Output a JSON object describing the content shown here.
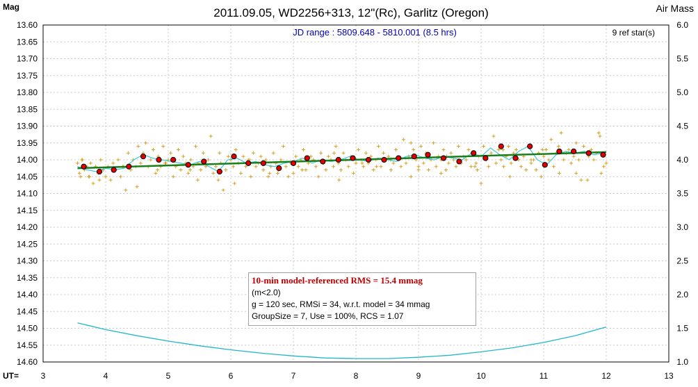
{
  "chart_data": {
    "type": "scatter",
    "title": "2011.09.05, WD2256+313, 12\"(Rc), Garlitz (Oregon)",
    "subtitle": "JD range : 5809.648 - 5810.001 (8.5 hrs)",
    "ref_stars": "9 ref star(s)",
    "ylabel": "Mag",
    "y2label": "Air Mass",
    "xlabel": "UT=",
    "xlim": [
      3,
      13
    ],
    "ylim": [
      13.6,
      14.6
    ],
    "y_inverted": true,
    "y2lim": [
      1.0,
      6.0
    ],
    "x_ticks": [
      "3",
      "4",
      "5",
      "6",
      "7",
      "8",
      "9",
      "10",
      "11",
      "12",
      "13"
    ],
    "y_ticks": [
      "13.60",
      "13.65",
      "13.70",
      "13.75",
      "13.80",
      "13.85",
      "13.90",
      "13.95",
      "14.00",
      "14.05",
      "14.10",
      "14.15",
      "14.20",
      "14.25",
      "14.30",
      "14.35",
      "14.40",
      "14.45",
      "14.50",
      "14.55",
      "14.60"
    ],
    "y2_ticks": [
      "6.0",
      "5.5",
      "5.0",
      "4.5",
      "4.0",
      "3.5",
      "3.0",
      "2.5",
      "2.0",
      "1.5",
      "1.0"
    ],
    "grid": true,
    "series": [
      {
        "kind": "raw",
        "color": "#d4a020",
        "x": [
          3.55,
          3.58,
          3.6,
          3.63,
          3.66,
          3.7,
          3.73,
          3.76,
          3.8,
          3.84,
          3.88,
          3.92,
          3.96,
          4.0,
          4.04,
          4.08,
          4.12,
          4.16,
          4.2,
          4.24,
          4.28,
          4.32,
          4.36,
          4.4,
          4.44,
          4.48,
          4.52,
          4.56,
          4.6,
          4.64,
          4.68,
          4.72,
          4.76,
          4.8,
          4.84,
          4.88,
          4.92,
          4.96,
          5.0,
          5.04,
          5.08,
          5.12,
          5.16,
          5.2,
          5.24,
          5.28,
          5.32,
          5.36,
          5.4,
          5.44,
          5.48,
          5.52,
          5.56,
          5.6,
          5.64,
          5.68,
          5.72,
          5.76,
          5.8,
          5.84,
          5.88,
          5.92,
          5.96,
          6.0,
          6.04,
          6.08,
          6.12,
          6.16,
          6.2,
          6.24,
          6.28,
          6.32,
          6.36,
          6.4,
          6.44,
          6.48,
          6.52,
          6.56,
          6.6,
          6.64,
          6.68,
          6.72,
          6.76,
          6.8,
          6.84,
          6.88,
          6.92,
          6.96,
          7.0,
          7.04,
          7.08,
          7.12,
          7.16,
          7.2,
          7.24,
          7.28,
          7.32,
          7.36,
          7.4,
          7.44,
          7.48,
          7.52,
          7.56,
          7.6,
          7.64,
          7.68,
          7.72,
          7.76,
          7.8,
          7.84,
          7.88,
          7.92,
          7.96,
          8.0,
          8.04,
          8.08,
          8.12,
          8.16,
          8.2,
          8.24,
          8.28,
          8.32,
          8.36,
          8.4,
          8.44,
          8.48,
          8.52,
          8.56,
          8.6,
          8.64,
          8.68,
          8.72,
          8.76,
          8.8,
          8.84,
          8.88,
          8.92,
          8.96,
          9.0,
          9.04,
          9.08,
          9.12,
          9.16,
          9.2,
          9.24,
          9.28,
          9.32,
          9.36,
          9.4,
          9.44,
          9.48,
          9.52,
          9.56,
          9.6,
          9.64,
          9.68,
          9.72,
          9.76,
          9.8,
          9.84,
          9.88,
          9.92,
          9.96,
          10.0,
          10.04,
          10.08,
          10.12,
          10.16,
          10.2,
          10.24,
          10.28,
          10.32,
          10.36,
          10.4,
          10.44,
          10.48,
          10.52,
          10.56,
          10.6,
          10.64,
          10.68,
          10.72,
          10.76,
          10.8,
          10.84,
          10.88,
          10.92,
          10.96,
          11.0,
          11.04,
          11.08,
          11.12,
          11.16,
          11.2,
          11.24,
          11.28,
          11.32,
          11.36,
          11.4,
          11.44,
          11.48,
          11.52,
          11.56,
          11.6,
          11.64,
          11.68,
          11.72,
          11.76,
          11.8,
          11.84,
          11.88,
          11.92,
          11.96,
          12.0,
          3.62,
          3.9,
          4.15,
          4.5,
          4.95,
          5.35,
          5.82,
          6.3,
          6.75,
          7.2,
          7.65,
          8.1,
          8.55,
          9.0,
          9.45,
          9.9,
          10.35,
          10.8,
          11.25,
          11.7,
          3.74,
          4.27,
          4.83,
          5.47,
          6.06,
          6.62,
          7.14,
          7.73,
          8.33,
          8.88,
          9.36,
          9.94,
          10.46,
          10.98,
          11.52,
          11.9
        ],
        "y": [
          14.01,
          14.04,
          14.05,
          14.0,
          14.03,
          14.02,
          14.05,
          14.01,
          14.07,
          14.02,
          14.04,
          14.0,
          14.03,
          14.05,
          14.02,
          14.06,
          14.01,
          14.03,
          14.0,
          14.05,
          14.02,
          14.09,
          13.98,
          14.03,
          14.0,
          14.02,
          13.96,
          14.01,
          13.98,
          13.95,
          14.02,
          14.0,
          13.97,
          14.04,
          13.99,
          14.02,
          13.96,
          14.01,
          14.0,
          13.98,
          14.05,
          14.02,
          13.97,
          14.03,
          13.99,
          14.01,
          14.04,
          14.0,
          14.02,
          13.96,
          14.01,
          14.03,
          13.98,
          14.02,
          14.0,
          13.93,
          14.04,
          14.02,
          14.06,
          14.01,
          14.09,
          14.03,
          13.99,
          14.0,
          14.02,
          13.97,
          14.01,
          14.04,
          13.99,
          14.02,
          14.0,
          14.05,
          13.98,
          14.02,
          14.01,
          13.99,
          14.03,
          14.0,
          14.05,
          14.02,
          13.98,
          14.01,
          14.03,
          14.0,
          13.96,
          14.02,
          14.05,
          14.01,
          14.04,
          13.99,
          14.02,
          14.0,
          13.97,
          14.03,
          14.01,
          13.99,
          14.0,
          14.02,
          14.05,
          13.98,
          14.01,
          14.03,
          13.99,
          14.0,
          14.02,
          13.96,
          14.01,
          14.03,
          13.98,
          14.0,
          14.02,
          13.99,
          14.04,
          14.01,
          13.97,
          14.0,
          14.02,
          13.98,
          14.01,
          13.99,
          14.03,
          14.0,
          13.96,
          14.02,
          13.98,
          14.0,
          13.99,
          14.03,
          14.01,
          13.97,
          14.0,
          14.02,
          13.94,
          14.01,
          13.99,
          14.05,
          13.97,
          14.0,
          14.02,
          13.96,
          14.01,
          13.98,
          14.03,
          14.0,
          13.95,
          14.02,
          13.99,
          14.0,
          13.97,
          14.03,
          14.01,
          13.98,
          14.0,
          14.02,
          13.96,
          14.01,
          13.99,
          14.0,
          13.97,
          14.02,
          13.98,
          14.01,
          13.99,
          14.07,
          13.96,
          14.0,
          14.02,
          13.98,
          13.93,
          14.01,
          13.97,
          14.0,
          14.02,
          13.99,
          13.96,
          14.01,
          13.98,
          13.97,
          14.0,
          14.02,
          13.99,
          14.03,
          13.96,
          14.01,
          14.0,
          14.03,
          13.98,
          14.05,
          13.99,
          13.97,
          14.0,
          13.94,
          14.02,
          13.98,
          13.96,
          13.92,
          14.0,
          13.98,
          13.97,
          14.01,
          13.99,
          13.95,
          14.0,
          14.06,
          13.96,
          13.98,
          13.99,
          13.97,
          14.0,
          13.98,
          13.92,
          14.04,
          14.02,
          14.01,
          14.0,
          14.06,
          14.03,
          14.08,
          14.01,
          14.03,
          13.98,
          14.0,
          14.04,
          14.03,
          13.98,
          14.01,
          14.0,
          14.03,
          13.99,
          14.02,
          13.97,
          14.0,
          14.04,
          14.06,
          14.05,
          14.02,
          14.03,
          14.06,
          14.07,
          14.04,
          14.03,
          14.06,
          14.02,
          13.95,
          14.04,
          14.03,
          14.05,
          13.97,
          14.04,
          13.93
        ]
      },
      {
        "kind": "binned",
        "color": "#e00000",
        "x": [
          3.65,
          3.9,
          4.13,
          4.37,
          4.6,
          4.85,
          5.08,
          5.32,
          5.57,
          5.82,
          6.05,
          6.28,
          6.52,
          6.77,
          7.0,
          7.22,
          7.47,
          7.72,
          7.95,
          8.2,
          8.45,
          8.68,
          8.93,
          9.15,
          9.4,
          9.65,
          9.88,
          10.07,
          10.32,
          10.55,
          10.78,
          11.02,
          11.25,
          11.48,
          11.72,
          11.95
        ],
        "y": [
          14.02,
          14.035,
          14.03,
          14.02,
          13.99,
          14.0,
          14.0,
          14.015,
          14.005,
          14.035,
          13.99,
          14.01,
          14.01,
          14.025,
          14.01,
          13.995,
          14.005,
          14.0,
          13.995,
          14.0,
          14.0,
          13.995,
          13.99,
          13.985,
          13.995,
          14.005,
          13.98,
          13.995,
          13.96,
          13.995,
          13.96,
          14.015,
          13.975,
          13.975,
          13.98,
          13.985
        ]
      },
      {
        "kind": "trend",
        "color": "#1a7f1a",
        "x": [
          3.55,
          12.0
        ],
        "y": [
          14.025,
          13.977
        ]
      },
      {
        "kind": "model",
        "color": "#40c8d8",
        "x": [
          3.55,
          3.7,
          3.85,
          4.0,
          4.15,
          4.3,
          4.45,
          4.6,
          4.75,
          4.9,
          5.05,
          5.2,
          5.35,
          5.5,
          5.65,
          5.8,
          5.95,
          6.1,
          6.25,
          6.4,
          6.55,
          6.7,
          6.85,
          7.0,
          7.15,
          7.3,
          7.45,
          7.6,
          7.75,
          7.9,
          8.05,
          8.2,
          8.35,
          8.5,
          8.65,
          8.8,
          8.95,
          9.1,
          9.25,
          9.4,
          9.55,
          9.7,
          9.85,
          10.0,
          10.15,
          10.3,
          10.45,
          10.6,
          10.75,
          10.9,
          11.05,
          11.2,
          11.35,
          11.5,
          11.65,
          11.8,
          11.95,
          12.0
        ],
        "y": [
          14.02,
          14.03,
          14.035,
          14.025,
          14.03,
          14.025,
          14.0,
          13.985,
          13.995,
          14.0,
          14.005,
          14.01,
          14.015,
          14.005,
          14.02,
          14.035,
          14.0,
          13.995,
          14.01,
          14.005,
          14.015,
          14.02,
          14.01,
          14.005,
          13.995,
          14.01,
          14.0,
          14.005,
          14.0,
          13.99,
          14.0,
          14.005,
          13.995,
          14.0,
          14.005,
          13.99,
          13.985,
          13.995,
          14.0,
          13.99,
          13.995,
          14.0,
          13.98,
          13.99,
          13.965,
          13.985,
          14.0,
          13.975,
          13.96,
          14.0,
          14.015,
          13.985,
          13.975,
          13.98,
          13.975,
          13.985,
          13.98,
          13.975
        ]
      },
      {
        "kind": "airmass",
        "axis": "y2",
        "color": "#20b8c8",
        "x": [
          3.55,
          4.0,
          4.5,
          5.0,
          5.5,
          6.0,
          6.5,
          7.0,
          7.5,
          8.0,
          8.5,
          9.0,
          9.5,
          10.0,
          10.5,
          11.0,
          11.5,
          12.0
        ],
        "y": [
          1.58,
          1.48,
          1.39,
          1.31,
          1.24,
          1.18,
          1.13,
          1.09,
          1.06,
          1.05,
          1.05,
          1.07,
          1.1,
          1.15,
          1.21,
          1.29,
          1.39,
          1.52
        ]
      }
    ]
  },
  "info_box": {
    "headline": "10-min model-referenced RMS = 15.4 mmag",
    "line1": "(m<2.0)",
    "line2": "g = 120 sec, RMSi = 34, w.r.t. model = 34 mmag",
    "line3": "GroupSize = 7, Use = 100%, RCS = 1.07"
  }
}
